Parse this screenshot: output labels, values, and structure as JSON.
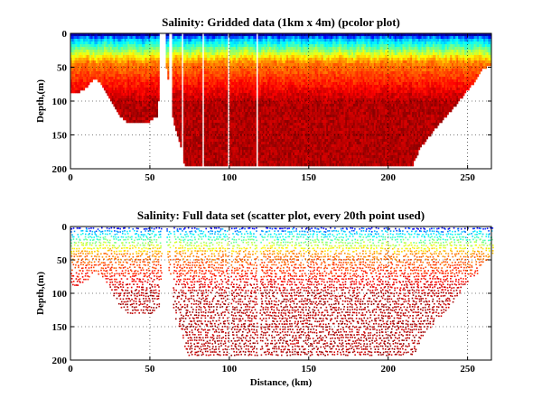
{
  "chart_data": [
    {
      "type": "heatmap",
      "title": "Salinity: Gridded data (1km x 4m) (pcolor plot)",
      "xlabel": "",
      "ylabel": "Depth,(m)",
      "xlim": [
        0,
        265
      ],
      "ylim": [
        200,
        0
      ],
      "xticks": [
        0,
        50,
        100,
        150,
        200,
        250
      ],
      "yticks": [
        0,
        50,
        100,
        150,
        200
      ],
      "grid": true,
      "colormap": "jet",
      "cell_size": {
        "distance_km": 1,
        "depth_m": 4
      },
      "bottom_profile": {
        "distance": [
          0,
          5,
          10,
          15,
          20,
          25,
          30,
          35,
          40,
          45,
          50,
          55,
          57,
          60,
          65,
          70,
          72,
          80,
          100,
          150,
          200,
          215,
          220,
          230,
          240,
          250,
          255,
          260,
          265
        ],
        "depth": [
          88,
          85,
          78,
          65,
          75,
          95,
          118,
          128,
          130,
          130,
          128,
          120,
          35,
          40,
          132,
          170,
          195,
          195,
          195,
          195,
          195,
          195,
          168,
          138,
          112,
          82,
          68,
          50,
          45
        ]
      },
      "surface_salinity_low_band_m": [
        0,
        12
      ],
      "deep_salinity_high_below_m": 60
    },
    {
      "type": "scatter",
      "title": "Salinity: Full data set (scatter plot, every 20th point used)",
      "xlabel": "Distance, (km)",
      "ylabel": "Depth,(m)",
      "xlim": [
        0,
        265
      ],
      "ylim": [
        200,
        0
      ],
      "xticks": [
        0,
        50,
        100,
        150,
        200,
        250
      ],
      "yticks": [
        0,
        50,
        100,
        150,
        200
      ],
      "grid": true,
      "colormap": "jet",
      "sampling_note": "every 20th point used",
      "bottom_profile": {
        "distance": [
          0,
          5,
          10,
          15,
          20,
          25,
          30,
          35,
          40,
          45,
          50,
          55,
          57,
          60,
          65,
          70,
          72,
          80,
          100,
          150,
          200,
          215,
          220,
          230,
          240,
          250,
          255,
          260,
          265
        ],
        "depth": [
          88,
          85,
          78,
          65,
          75,
          95,
          118,
          128,
          130,
          130,
          128,
          120,
          35,
          40,
          132,
          170,
          192,
          192,
          192,
          192,
          192,
          192,
          168,
          138,
          112,
          82,
          68,
          50,
          45
        ]
      }
    }
  ],
  "colors": {
    "jet": [
      "#00007f",
      "#0000ff",
      "#007fff",
      "#00ffff",
      "#7fff7f",
      "#ffff00",
      "#ff7f00",
      "#ff0000",
      "#7f0000"
    ],
    "axes": "#000000",
    "background": "#ffffff"
  }
}
